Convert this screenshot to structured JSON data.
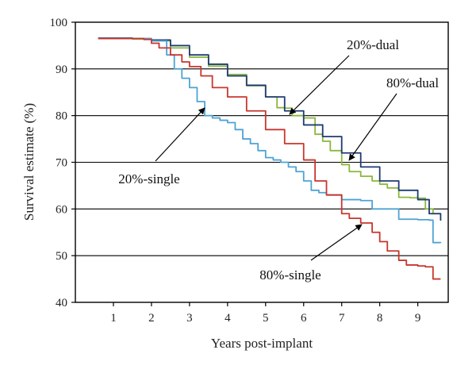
{
  "chart_data": {
    "type": "line",
    "xlabel": "Years post-implant",
    "ylabel": "Survival estimate (%)",
    "xlim": [
      0.0,
      9.8
    ],
    "ylim": [
      40,
      100
    ],
    "xticks": [
      1,
      2,
      3,
      4,
      5,
      6,
      7,
      8,
      9
    ],
    "yticks": [
      40,
      50,
      60,
      70,
      80,
      90,
      100
    ],
    "grid": "horizontal",
    "series": [
      {
        "name": "20%-dual",
        "color": "#8ab83a",
        "x": [
          0.6,
          1.5,
          2.0,
          2.5,
          3.0,
          3.5,
          4.0,
          4.5,
          5.0,
          5.3,
          5.5,
          5.7,
          6.0,
          6.3,
          6.5,
          6.7,
          7.0,
          7.2,
          7.5,
          7.8,
          8.0,
          8.2,
          8.5,
          8.8,
          9.0,
          9.2,
          9.4,
          9.6
        ],
        "values": [
          96.5,
          96.4,
          96.0,
          94.5,
          92.5,
          90.6,
          88.8,
          86.4,
          84.0,
          81.7,
          81.6,
          80.0,
          79.5,
          76.0,
          74.5,
          72.5,
          69.5,
          68.0,
          67.0,
          66.0,
          65.3,
          64.5,
          62.5,
          62.4,
          62.3,
          60.0,
          59.0,
          58.9
        ]
      },
      {
        "name": "80%-dual",
        "color": "#1f3b73",
        "x": [
          0.6,
          1.5,
          2.0,
          2.5,
          3.0,
          3.5,
          4.0,
          4.5,
          5.0,
          5.5,
          6.0,
          6.5,
          7.0,
          7.5,
          8.0,
          8.5,
          9.0,
          9.3,
          9.6
        ],
        "values": [
          96.6,
          96.5,
          96.2,
          95.0,
          93.0,
          91.0,
          88.5,
          86.5,
          84.0,
          81.0,
          78.0,
          75.5,
          72.0,
          69.0,
          66.0,
          64.0,
          62.0,
          59.0,
          57.5
        ]
      },
      {
        "name": "20%-single",
        "color": "#4ea3d4",
        "x": [
          0.6,
          2.0,
          2.4,
          2.6,
          2.8,
          3.0,
          3.2,
          3.4,
          3.6,
          3.8,
          4.0,
          4.2,
          4.4,
          4.6,
          4.8,
          5.0,
          5.2,
          5.4,
          5.6,
          5.8,
          6.0,
          6.2,
          6.4,
          6.6,
          7.0,
          7.5,
          7.8,
          8.0,
          8.3,
          8.5,
          9.0,
          9.3,
          9.4,
          9.6
        ],
        "values": [
          96.5,
          96.0,
          93.0,
          90.0,
          88.0,
          86.0,
          83.0,
          80.0,
          79.5,
          79.0,
          78.5,
          77.0,
          75.0,
          74.0,
          72.5,
          71.0,
          70.5,
          70.0,
          69.0,
          68.0,
          66.0,
          64.0,
          63.5,
          63.0,
          62.0,
          61.8,
          60.0,
          60.0,
          60.0,
          57.8,
          57.7,
          57.6,
          52.8,
          52.7
        ]
      },
      {
        "name": "80%-single",
        "color": "#c8362d",
        "x": [
          0.6,
          1.8,
          2.0,
          2.2,
          2.5,
          2.8,
          3.0,
          3.3,
          3.6,
          4.0,
          4.5,
          5.0,
          5.5,
          6.0,
          6.3,
          6.6,
          7.0,
          7.2,
          7.5,
          7.8,
          8.0,
          8.2,
          8.5,
          8.7,
          9.0,
          9.2,
          9.4,
          9.6
        ],
        "values": [
          96.5,
          96.3,
          95.5,
          94.5,
          93.0,
          91.5,
          90.5,
          88.5,
          86.0,
          84.0,
          81.0,
          77.0,
          74.0,
          70.5,
          66.0,
          63.0,
          59.0,
          58.0,
          57.0,
          55.0,
          53.0,
          51.0,
          49.0,
          48.0,
          47.8,
          47.6,
          45.0,
          45.0
        ]
      }
    ],
    "annotations": [
      {
        "text": "20%-dual",
        "target_x": 5.7,
        "target_y": 80.0
      },
      {
        "text": "80%-dual",
        "target_x": 7.2,
        "target_y": 69.5
      },
      {
        "text": "20%-single",
        "target_x": 3.5,
        "target_y": 81.5
      },
      {
        "text": "80%-single",
        "target_x": 7.6,
        "target_y": 57.0
      }
    ]
  }
}
